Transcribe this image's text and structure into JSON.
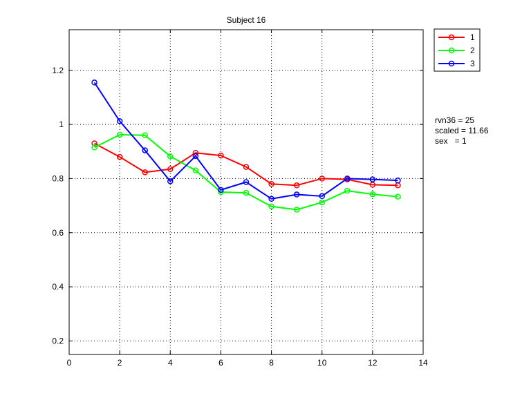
{
  "chart_data": {
    "type": "line",
    "title": "Subject 16",
    "xlabel": "",
    "ylabel": "",
    "xlim": [
      0,
      14
    ],
    "ylim": [
      0.15,
      1.35
    ],
    "xticks": [
      0,
      2,
      4,
      6,
      8,
      10,
      12,
      14
    ],
    "xtick_labels": [
      "0",
      "2",
      "4",
      "6",
      "8",
      "10",
      "12",
      "14"
    ],
    "yticks": [
      0.2,
      0.4,
      0.6,
      0.8,
      1.0,
      1.2
    ],
    "ytick_labels": [
      "0.2",
      "0.4",
      "0.6",
      "0.8",
      "1",
      "1.2"
    ],
    "grid": true,
    "legend_position": "outside-top-right",
    "x": [
      1,
      2,
      3,
      4,
      5,
      6,
      7,
      8,
      9,
      10,
      11,
      12,
      13
    ],
    "series": [
      {
        "name": "1",
        "color": "#ff0000",
        "marker": "circle",
        "values": [
          0.93,
          0.88,
          0.823,
          0.835,
          0.895,
          0.885,
          0.843,
          0.78,
          0.775,
          0.8,
          0.797,
          0.777,
          0.775
        ]
      },
      {
        "name": "2",
        "color": "#00ff00",
        "marker": "circle",
        "values": [
          0.915,
          0.962,
          0.96,
          0.882,
          0.83,
          0.75,
          0.747,
          0.697,
          0.685,
          0.712,
          0.755,
          0.742,
          0.733
        ]
      },
      {
        "name": "3",
        "color": "#0000ff",
        "marker": "circle",
        "values": [
          1.155,
          1.012,
          0.904,
          0.79,
          0.883,
          0.758,
          0.787,
          0.725,
          0.741,
          0.735,
          0.8,
          0.797,
          0.793
        ]
      }
    ],
    "annotations": [
      "rvn36 = 25",
      "scaled = 11.66",
      "sex   = 1"
    ]
  }
}
